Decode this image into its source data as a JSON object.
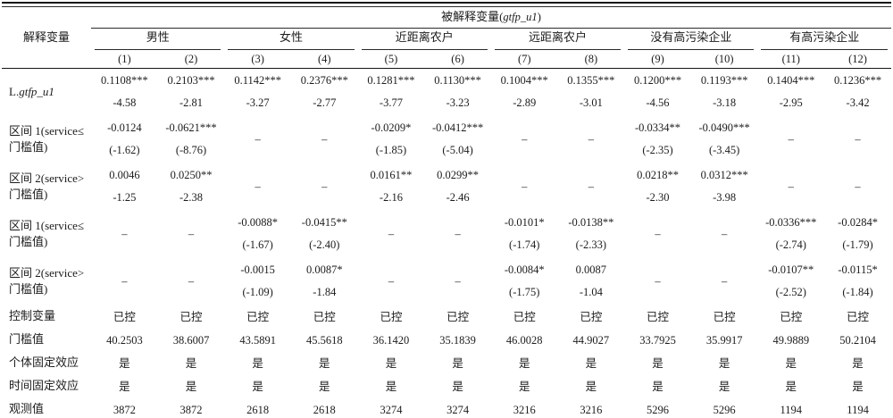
{
  "table": {
    "dep_var": {
      "prefix": "被解释变量(",
      "var": "gtfp_u1",
      "suffix": ")"
    },
    "explain_var_label": "解释变量",
    "groups": [
      "男性",
      "女性",
      "近距离农户",
      "远距离农户",
      "没有高污染企业",
      "有高污染企业"
    ],
    "col_numbers": [
      "(1)",
      "(2)",
      "(3)",
      "(4)",
      "(5)",
      "(6)",
      "(7)",
      "(8)",
      "(9)",
      "(10)",
      "(11)",
      "(12)"
    ],
    "empty_cell": "–",
    "rows": [
      {
        "id": "l-gtfp-u1",
        "kind": "pair",
        "label_prefix": "L.",
        "label_var": "gtfp_u1",
        "cells": [
          [
            "0.1108***",
            "-4.58"
          ],
          [
            "0.2103***",
            "-2.81"
          ],
          [
            "0.1142***",
            "-3.27"
          ],
          [
            "0.2376***",
            "-2.77"
          ],
          [
            "0.1281***",
            "-3.77"
          ],
          [
            "0.1130***",
            "-3.23"
          ],
          [
            "0.1004***",
            "-2.89"
          ],
          [
            "0.1355***",
            "-3.01"
          ],
          [
            "0.1200***",
            "-4.56"
          ],
          [
            "0.1193***",
            "-3.18"
          ],
          [
            "0.1404***",
            "-2.95"
          ],
          [
            "0.1236***",
            "-3.42"
          ]
        ]
      },
      {
        "id": "interval1-a",
        "kind": "pair",
        "label": "区间 1(service≤门槛值)",
        "cells": [
          [
            "-0.0124",
            "(-1.62)"
          ],
          [
            "-0.0621***",
            "(-8.76)"
          ],
          null,
          null,
          [
            "-0.0209*",
            "(-1.85)"
          ],
          [
            "-0.0412***",
            "(-5.04)"
          ],
          null,
          null,
          [
            "-0.0334**",
            "(-2.35)"
          ],
          [
            "-0.0490***",
            "(-3.45)"
          ],
          null,
          null
        ]
      },
      {
        "id": "interval2-a",
        "kind": "pair",
        "label": "区间 2(service>门槛值)",
        "cells": [
          [
            "0.0046",
            "-1.25"
          ],
          [
            "0.0250**",
            "-2.38"
          ],
          null,
          null,
          [
            "0.0161**",
            "-2.16"
          ],
          [
            "0.0299**",
            "-2.46"
          ],
          null,
          null,
          [
            "0.0218**",
            "-2.30"
          ],
          [
            "0.0312***",
            "-3.98"
          ],
          null,
          null
        ]
      },
      {
        "id": "interval1-b",
        "kind": "pair",
        "label": "区间 1(service≤门槛值)",
        "cells": [
          null,
          null,
          [
            "-0.0088*",
            "(-1.67)"
          ],
          [
            "-0.0415**",
            "(-2.40)"
          ],
          null,
          null,
          [
            "-0.0101*",
            "(-1.74)"
          ],
          [
            "-0.0138**",
            "(-2.33)"
          ],
          null,
          null,
          [
            "-0.0336***",
            "(-2.74)"
          ],
          [
            "-0.0284*",
            "(-1.79)"
          ]
        ]
      },
      {
        "id": "interval2-b",
        "kind": "pair",
        "label": "区间 2(service>门槛值)",
        "cells": [
          null,
          null,
          [
            "-0.0015",
            "(-1.09)"
          ],
          [
            "0.0087*",
            "-1.84"
          ],
          null,
          null,
          [
            "-0.0084*",
            "(-1.75)"
          ],
          [
            "0.0087",
            "-1.04"
          ],
          null,
          null,
          [
            "-0.0107**",
            "(-2.52)"
          ],
          [
            "-0.0115*",
            "(-1.84)"
          ]
        ]
      },
      {
        "id": "controls",
        "kind": "single",
        "label": "控制变量",
        "cells": [
          "已控",
          "已控",
          "已控",
          "已控",
          "已控",
          "已控",
          "已控",
          "已控",
          "已控",
          "已控",
          "已控",
          "已控"
        ]
      },
      {
        "id": "threshold-value",
        "kind": "single",
        "label": "门槛值",
        "cells": [
          "40.2503",
          "38.6007",
          "43.5891",
          "45.5618",
          "36.1420",
          "35.1839",
          "46.0028",
          "44.9027",
          "33.7925",
          "35.9917",
          "49.9889",
          "50.2104"
        ]
      },
      {
        "id": "individual-fe",
        "kind": "single",
        "label": "个体固定效应",
        "cells": [
          "是",
          "是",
          "是",
          "是",
          "是",
          "是",
          "是",
          "是",
          "是",
          "是",
          "是",
          "是"
        ]
      },
      {
        "id": "time-fe",
        "kind": "single",
        "label": "时间固定效应",
        "cells": [
          "是",
          "是",
          "是",
          "是",
          "是",
          "是",
          "是",
          "是",
          "是",
          "是",
          "是",
          "是"
        ]
      },
      {
        "id": "observations",
        "kind": "single",
        "label": "观测值",
        "cells": [
          "3872",
          "3872",
          "2618",
          "2618",
          "3274",
          "3274",
          "3216",
          "3216",
          "5296",
          "5296",
          "1194",
          "1194"
        ]
      }
    ]
  }
}
